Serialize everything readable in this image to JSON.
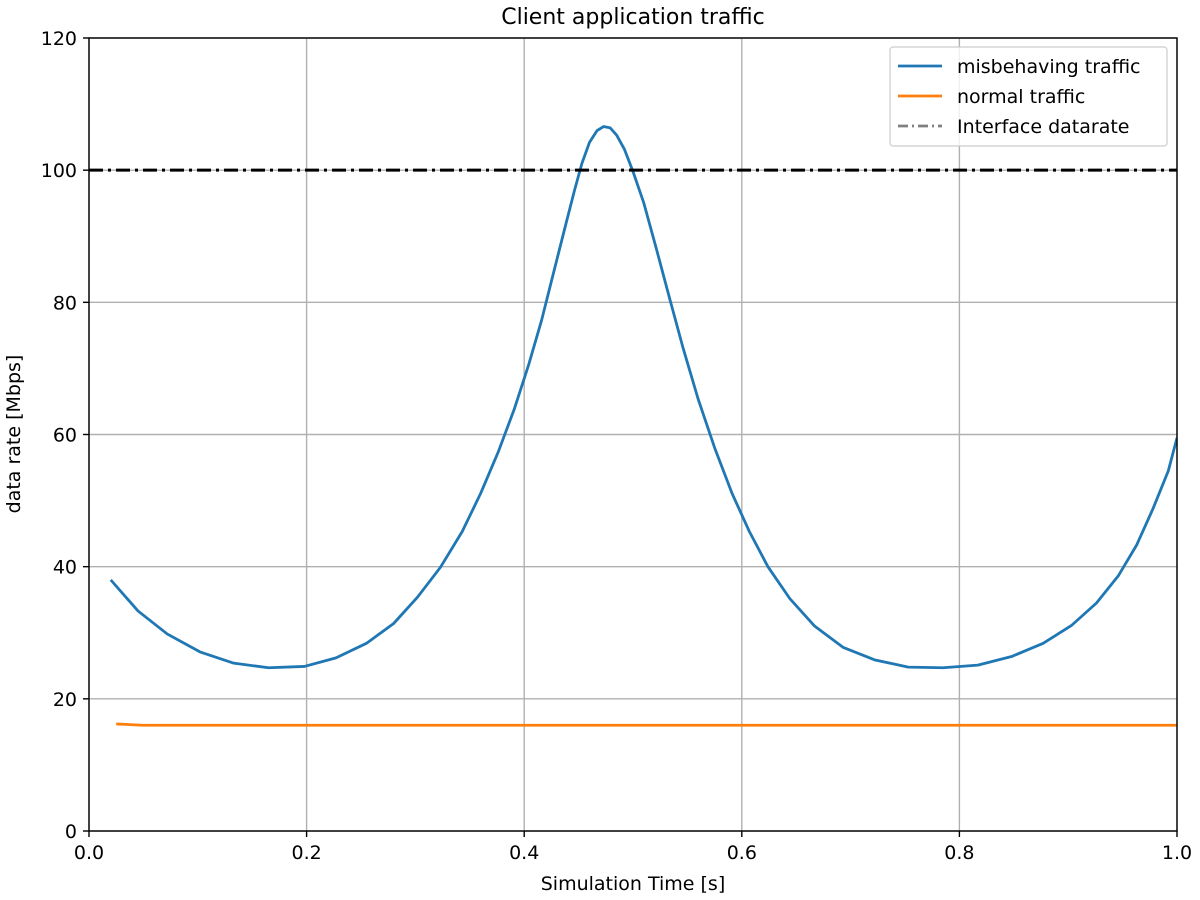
{
  "chart_data": {
    "type": "line",
    "title": "Client application traffic",
    "xlabel": "Simulation Time [s]",
    "ylabel": "data rate [Mbps]",
    "xlim": [
      0.0,
      1.0
    ],
    "ylim": [
      0,
      120
    ],
    "xticks": [
      0.0,
      0.2,
      0.4,
      0.6,
      0.8,
      1.0
    ],
    "xtick_labels": [
      "0.0",
      "0.2",
      "0.4",
      "0.6",
      "0.8",
      "1.0"
    ],
    "yticks": [
      0,
      20,
      40,
      60,
      80,
      100,
      120
    ],
    "ytick_labels": [
      "0",
      "20",
      "40",
      "60",
      "80",
      "100",
      "120"
    ],
    "grid": true,
    "legend_position": "top-right",
    "series": [
      {
        "name": "misbehaving traffic",
        "color": "#1f77b4",
        "style": "solid",
        "x": [
          0.02,
          0.045,
          0.072,
          0.102,
          0.133,
          0.165,
          0.198,
          0.227,
          0.255,
          0.28,
          0.302,
          0.323,
          0.343,
          0.36,
          0.376,
          0.391,
          0.404,
          0.416,
          0.427,
          0.437,
          0.446,
          0.453,
          0.46,
          0.467,
          0.473,
          0.479,
          0.485,
          0.492,
          0.5,
          0.51,
          0.521,
          0.533,
          0.546,
          0.56,
          0.575,
          0.591,
          0.607,
          0.624,
          0.644,
          0.667,
          0.693,
          0.722,
          0.753,
          0.785,
          0.817,
          0.848,
          0.877,
          0.903,
          0.926,
          0.946,
          0.963,
          0.978,
          0.992,
          1.0
        ],
        "y": [
          38.0,
          33.3,
          29.8,
          27.1,
          25.4,
          24.7,
          24.9,
          26.2,
          28.4,
          31.4,
          35.4,
          39.9,
          45.3,
          51.1,
          57.3,
          63.9,
          70.5,
          77.3,
          84.5,
          91.0,
          96.8,
          101.0,
          104.2,
          106.0,
          106.6,
          106.4,
          105.3,
          103.2,
          99.8,
          95.0,
          88.4,
          81.0,
          73.1,
          65.3,
          58.0,
          51.1,
          45.3,
          40.0,
          35.2,
          31.0,
          27.8,
          25.9,
          24.8,
          24.7,
          25.1,
          26.4,
          28.4,
          31.1,
          34.5,
          38.6,
          43.3,
          48.8,
          54.5,
          59.5
        ]
      },
      {
        "name": "normal traffic",
        "color": "#ff7f0e",
        "style": "solid",
        "x": [
          0.025,
          0.05,
          0.1,
          0.2,
          0.3,
          0.4,
          0.5,
          0.6,
          0.7,
          0.8,
          0.9,
          1.0
        ],
        "y": [
          16.2,
          16.0,
          16.0,
          16.0,
          16.0,
          16.0,
          16.0,
          16.0,
          16.0,
          16.0,
          16.0,
          16.0
        ]
      },
      {
        "name": "Interface datarate",
        "color": "#000000",
        "legend_color": "#808080",
        "style": "dashdot",
        "x": [
          0.0,
          1.0
        ],
        "y": [
          100,
          100
        ]
      }
    ]
  }
}
